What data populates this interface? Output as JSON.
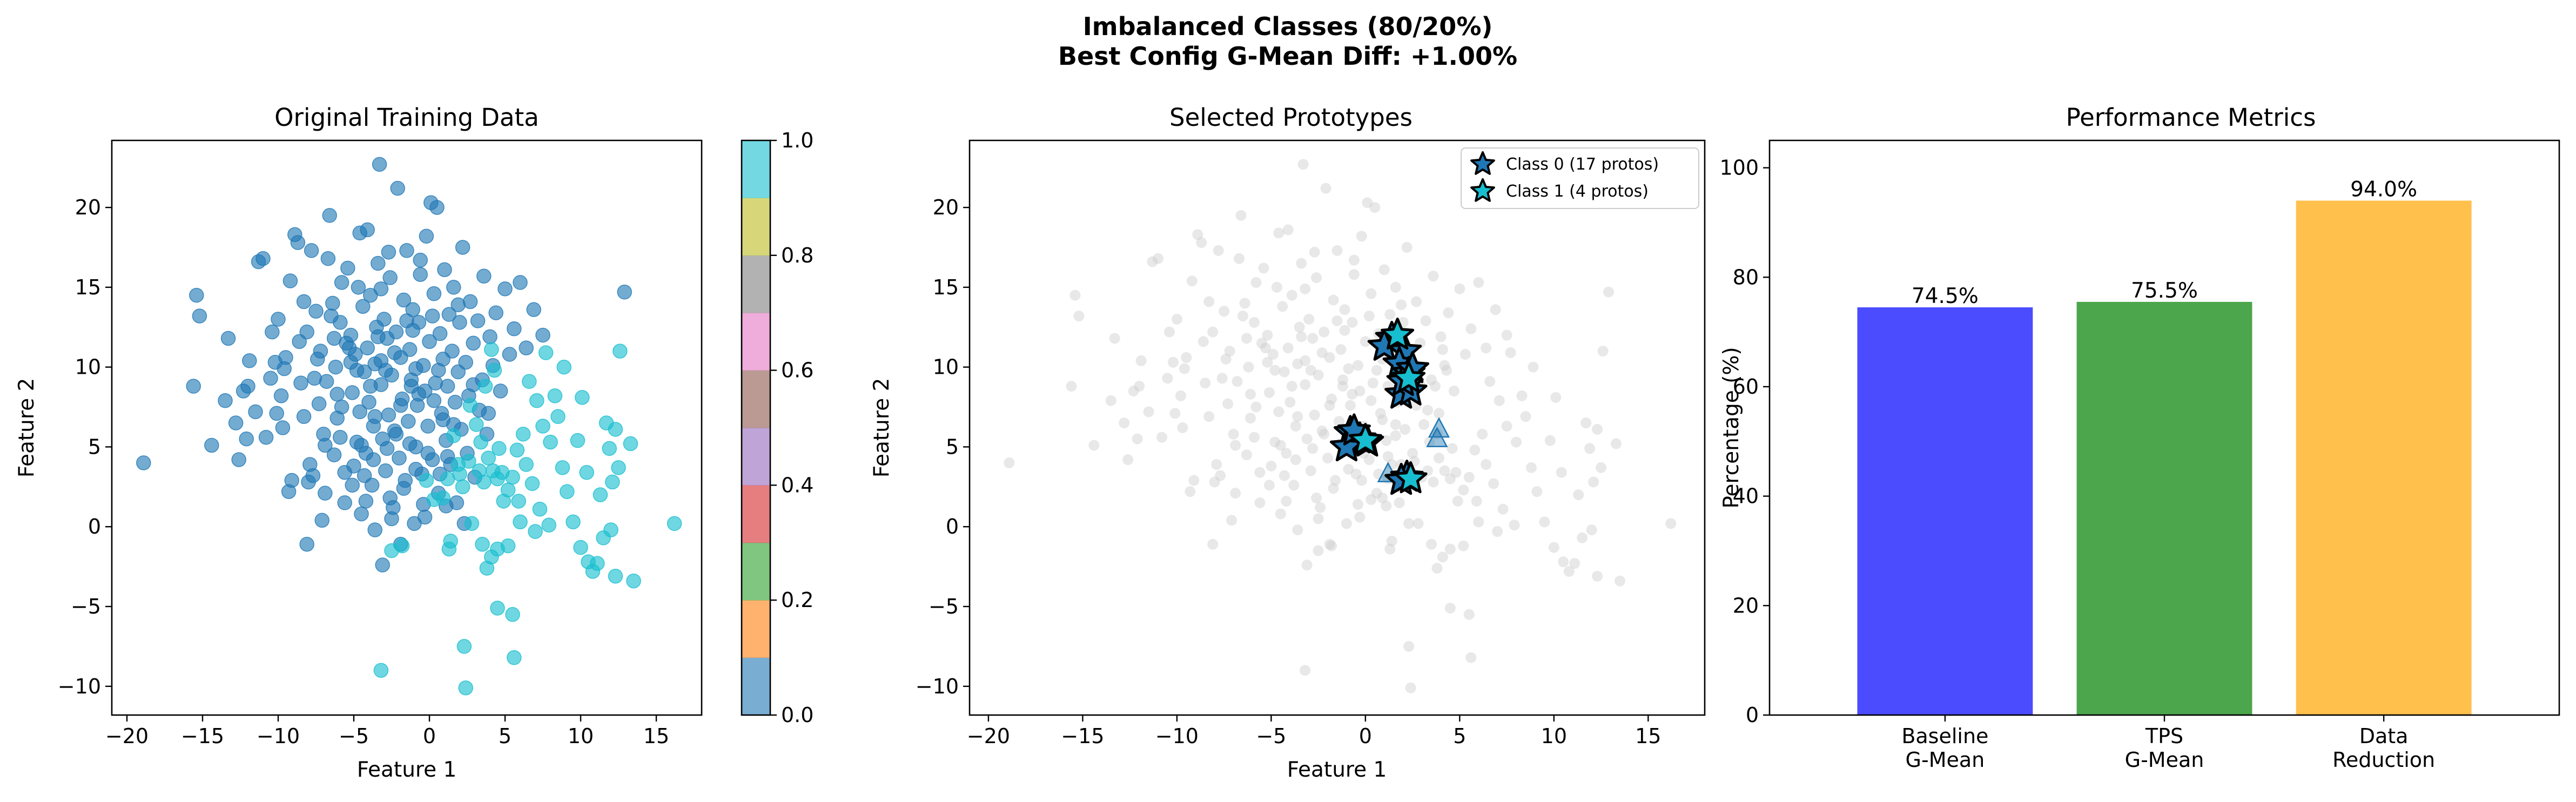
{
  "figure": {
    "title_line1": "Imbalanced Classes (80/20%)",
    "title_line2": "Best Config G-Mean Diff: +1.00%"
  },
  "colors": {
    "class0": "#1f77b4",
    "class1": "#17becf",
    "background_points": "#cccccc",
    "colormap_tab10": [
      "#1f77b4",
      "#ff7f0e",
      "#2ca02c",
      "#d62728",
      "#9467bd",
      "#8c564b",
      "#e377c2",
      "#7f7f7f",
      "#bcbd22",
      "#17becf"
    ],
    "bars": [
      "#0000ff",
      "#008000",
      "#ffa500"
    ]
  },
  "chart_data": [
    {
      "type": "scatter",
      "title": "Original Training Data",
      "xlabel": "Feature 1",
      "ylabel": "Feature 2",
      "xlim": [
        -21,
        18
      ],
      "ylim": [
        -11.8,
        24.2
      ],
      "xticks": [
        -20,
        -15,
        -10,
        -5,
        0,
        5,
        10,
        15
      ],
      "yticks": [
        -10,
        -5,
        0,
        5,
        10,
        15,
        20
      ],
      "grid": false,
      "colorbar": {
        "min": 0.0,
        "max": 1.0,
        "ticks": [
          "0.0",
          "0.2",
          "0.4",
          "0.6",
          "0.8",
          "1.0"
        ],
        "colormap": "tab10"
      },
      "class0_points": [
        [
          -18.9,
          4
        ],
        [
          -15.6,
          8.8
        ],
        [
          -15.4,
          14.5
        ],
        [
          -15.2,
          13.2
        ],
        [
          -14.4,
          5.1
        ],
        [
          -12.8,
          6.5
        ],
        [
          -12.6,
          4.2
        ],
        [
          -12.3,
          8.5
        ],
        [
          -12,
          8.8
        ],
        [
          -11.5,
          7.2
        ],
        [
          -11.3,
          16.6
        ],
        [
          -11,
          16.8
        ],
        [
          -10.8,
          5.6
        ],
        [
          -10.5,
          9.3
        ],
        [
          -10.2,
          10.3
        ],
        [
          -10,
          13
        ],
        [
          -9.7,
          6.2
        ],
        [
          -9.6,
          9.9
        ],
        [
          -9.3,
          2.2
        ],
        [
          -9.2,
          15.4
        ],
        [
          -8.9,
          18.3
        ],
        [
          -8.7,
          17.8
        ],
        [
          -8.5,
          9
        ],
        [
          -8.3,
          6.9
        ],
        [
          -8.1,
          12.2
        ],
        [
          -8,
          2.8
        ],
        [
          -7.8,
          17.3
        ],
        [
          -7.7,
          3.2
        ],
        [
          -7.5,
          13.5
        ],
        [
          -7.4,
          10.5
        ],
        [
          -7.2,
          11
        ],
        [
          -7,
          5.8
        ],
        [
          -6.9,
          2.1
        ],
        [
          -6.7,
          16.8
        ],
        [
          -6.6,
          19.5
        ],
        [
          -6.4,
          14
        ],
        [
          -6.3,
          4.5
        ],
        [
          -6.2,
          10
        ],
        [
          -6.1,
          8.3
        ],
        [
          -5.9,
          12.8
        ],
        [
          -5.8,
          7.5
        ],
        [
          -5.6,
          1.5
        ],
        [
          -5.5,
          11.5
        ],
        [
          -5.4,
          16.2
        ],
        [
          -5.2,
          12
        ],
        [
          -5.1,
          8.4
        ],
        [
          -5,
          3.8
        ],
        [
          -4.9,
          10.8
        ],
        [
          -4.8,
          5.3
        ],
        [
          -4.7,
          15
        ],
        [
          -4.6,
          18.4
        ],
        [
          -4.5,
          0.8
        ],
        [
          -4.4,
          13.8
        ],
        [
          -4.3,
          9.7
        ],
        [
          -4.2,
          4.6
        ],
        [
          -4.1,
          11.2
        ],
        [
          -4,
          7.8
        ],
        [
          -3.9,
          14.5
        ],
        [
          -3.8,
          2.6
        ],
        [
          -3.7,
          6.3
        ],
        [
          -3.6,
          10.2
        ],
        [
          -3.5,
          12.5
        ],
        [
          -3.4,
          16.5
        ],
        [
          -3.3,
          22.7
        ],
        [
          -3.2,
          8.9
        ],
        [
          -3.1,
          5.5
        ],
        [
          -3,
          13
        ],
        [
          -2.9,
          3.5
        ],
        [
          -2.8,
          11.8
        ],
        [
          -2.7,
          7
        ],
        [
          -2.6,
          15.6
        ],
        [
          -2.5,
          9.5
        ],
        [
          -2.4,
          1.2
        ],
        [
          -2.3,
          6
        ],
        [
          -2.2,
          12.2
        ],
        [
          -2.1,
          21.2
        ],
        [
          -2,
          4.3
        ],
        [
          -1.9,
          10.6
        ],
        [
          -1.8,
          8
        ],
        [
          -1.7,
          14.2
        ],
        [
          -1.6,
          2.9
        ],
        [
          -1.5,
          17.3
        ],
        [
          -1.4,
          6.6
        ],
        [
          -1.3,
          11.1
        ],
        [
          -1.2,
          9.2
        ],
        [
          -1.1,
          13.6
        ],
        [
          -1,
          0.2
        ],
        [
          -0.9,
          5
        ],
        [
          -0.8,
          7.6
        ],
        [
          -0.7,
          12.8
        ],
        [
          -0.6,
          15.8
        ],
        [
          -0.5,
          3.3
        ],
        [
          -0.4,
          10.1
        ],
        [
          -0.3,
          8.5
        ],
        [
          -0.2,
          18.2
        ],
        [
          -0.1,
          6.3
        ],
        [
          0,
          11.6
        ],
        [
          0.1,
          20.3
        ],
        [
          0.2,
          4.2
        ],
        [
          0.3,
          14.6
        ],
        [
          0.4,
          9
        ],
        [
          0.5,
          20
        ],
        [
          0.6,
          2.1
        ],
        [
          0.7,
          12.1
        ],
        [
          0.8,
          7.1
        ],
        [
          0.9,
          10.5
        ],
        [
          1,
          16.1
        ],
        [
          1.1,
          5.4
        ],
        [
          1.2,
          8.8
        ],
        [
          1.3,
          13.3
        ],
        [
          1.4,
          3.9
        ],
        [
          1.5,
          11
        ],
        [
          1.6,
          15
        ],
        [
          1.7,
          7.8
        ],
        [
          1.8,
          1.5
        ],
        [
          1.9,
          9.7
        ],
        [
          2,
          12.8
        ],
        [
          2.1,
          6.1
        ],
        [
          2.2,
          17.5
        ],
        [
          2.4,
          10.3
        ],
        [
          2.5,
          4.6
        ],
        [
          2.6,
          8.2
        ],
        [
          2.7,
          14.1
        ],
        [
          2.9,
          11.5
        ],
        [
          3,
          3.1
        ],
        [
          3.2,
          12.9
        ],
        [
          3.3,
          7.3
        ],
        [
          3.5,
          9.2
        ],
        [
          3.6,
          15.7
        ],
        [
          3.8,
          5.8
        ],
        [
          4,
          11.9
        ],
        [
          4.2,
          10.1
        ],
        [
          4.4,
          13.4
        ],
        [
          4.7,
          8.5
        ],
        [
          5,
          14.9
        ],
        [
          5.3,
          10.8
        ],
        [
          5.6,
          12.4
        ],
        [
          6,
          15.3
        ],
        [
          6.4,
          11.2
        ],
        [
          6.9,
          13.6
        ],
        [
          7.5,
          12
        ],
        [
          12.9,
          14.7
        ],
        [
          -13.5,
          7.9
        ],
        [
          -9.8,
          8.2
        ],
        [
          -6.8,
          9.1
        ],
        [
          -3.2,
          10.4
        ],
        [
          -2.9,
          9.8
        ],
        [
          -0.9,
          9.9
        ],
        [
          -4.6,
          7.2
        ],
        [
          -3.9,
          8.8
        ],
        [
          -1.9,
          7.6
        ],
        [
          -0.7,
          8.3
        ],
        [
          -5.3,
          11.2
        ],
        [
          -2.3,
          10.9
        ],
        [
          0.6,
          9.8
        ],
        [
          -8.6,
          11.6
        ],
        [
          -10.4,
          12.2
        ],
        [
          -6.5,
          13.2
        ],
        [
          -9.1,
          2.9
        ],
        [
          -7.9,
          3.9
        ],
        [
          -2.5,
          0.5
        ],
        [
          -3.6,
          -0.2
        ],
        [
          -3.1,
          -2.4
        ],
        [
          -1.9,
          -1.1
        ],
        [
          -2.6,
          1.8
        ],
        [
          -0.3,
          0.6
        ],
        [
          1.1,
          1.3
        ],
        [
          2.3,
          0.2
        ],
        [
          -5.9,
          5.6
        ],
        [
          -4.5,
          5.1
        ],
        [
          -3.7,
          4.2
        ],
        [
          -1.3,
          5.2
        ],
        [
          -0.1,
          4.6
        ],
        [
          1.2,
          4.4
        ],
        [
          -7.3,
          7.7
        ],
        [
          -6.1,
          6.8
        ],
        [
          -4.8,
          9.8
        ],
        [
          -1.1,
          12.3
        ],
        [
          0.2,
          13.2
        ],
        [
          1.9,
          13.9
        ],
        [
          -4.1,
          18.6
        ],
        [
          -2.7,
          17.2
        ],
        [
          -0.6,
          16.7
        ],
        [
          -3.2,
          14.9
        ],
        [
          -5.8,
          15.3
        ],
        [
          -8.3,
          14.1
        ],
        [
          -11.9,
          10.4
        ],
        [
          -13.3,
          11.8
        ],
        [
          -7.1,
          0.4
        ],
        [
          -5.1,
          2.6
        ],
        [
          -4.3,
          3.2
        ],
        [
          -1.7,
          2.4
        ],
        [
          0.7,
          3.3
        ],
        [
          -0.4,
          1.4
        ],
        [
          -8.1,
          -1.1
        ],
        [
          -6.9,
          5.1
        ],
        [
          -2.2,
          5.8
        ],
        [
          0.9,
          6.7
        ],
        [
          -9.5,
          10.6
        ],
        [
          -3.4,
          11.9
        ],
        [
          -1.5,
          12.9
        ],
        [
          2.9,
          8.9
        ],
        [
          3.9,
          7.1
        ],
        [
          -10.1,
          7.1
        ],
        [
          -12.1,
          5.5
        ],
        [
          -6.3,
          11.8
        ],
        [
          -7.6,
          9.3
        ],
        [
          -5.2,
          10.3
        ],
        [
          -3.6,
          6.9
        ],
        [
          -2.8,
          4.9
        ],
        [
          -0.9,
          3.6
        ],
        [
          -4.2,
          1.6
        ],
        [
          -5.6,
          3.4
        ],
        [
          -1.2,
          8.8
        ],
        [
          0.3,
          7.9
        ],
        [
          1.6,
          6.4
        ]
      ],
      "class1_points": [
        [
          -3.2,
          -9
        ],
        [
          2.3,
          -7.5
        ],
        [
          2.4,
          -10.1
        ],
        [
          4.5,
          -5.1
        ],
        [
          5.5,
          -5.5
        ],
        [
          5.6,
          -8.2
        ],
        [
          -2.5,
          -1.5
        ],
        [
          -1.8,
          -1.2
        ],
        [
          1.3,
          -1.4
        ],
        [
          1.4,
          -0.9
        ],
        [
          2.8,
          0.2
        ],
        [
          3.5,
          -1.1
        ],
        [
          3.8,
          -2.6
        ],
        [
          4.1,
          -1.9
        ],
        [
          4.5,
          -1.4
        ],
        [
          5.2,
          -1.2
        ],
        [
          6,
          0.3
        ],
        [
          7,
          -0.3
        ],
        [
          7.9,
          0.1
        ],
        [
          9.5,
          0.3
        ],
        [
          10,
          -1.3
        ],
        [
          10.5,
          -2.2
        ],
        [
          10.8,
          -2.8
        ],
        [
          11.1,
          -2.3
        ],
        [
          11.5,
          -0.7
        ],
        [
          12,
          -0.2
        ],
        [
          12.3,
          -3.1
        ],
        [
          13.5,
          -3.4
        ],
        [
          16.2,
          0.2
        ],
        [
          12.5,
          3.7
        ],
        [
          12.1,
          2.8
        ],
        [
          11.7,
          6.5
        ],
        [
          11.9,
          4.9
        ],
        [
          12.3,
          6.1
        ],
        [
          13.3,
          5.2
        ],
        [
          12.6,
          11
        ],
        [
          10.1,
          8.1
        ],
        [
          9.8,
          5.4
        ],
        [
          8.9,
          10
        ],
        [
          8.8,
          3.7
        ],
        [
          8,
          5.3
        ],
        [
          7.5,
          6.3
        ],
        [
          7.1,
          7.9
        ],
        [
          6.6,
          9.1
        ],
        [
          6.2,
          5.8
        ],
        [
          5.8,
          4.8
        ],
        [
          5.5,
          3.1
        ],
        [
          5.2,
          2.3
        ],
        [
          4.9,
          1.6
        ],
        [
          4.5,
          3
        ],
        [
          4.2,
          3.5
        ],
        [
          3.9,
          4.3
        ],
        [
          3.6,
          2.8
        ],
        [
          3.4,
          5.3
        ],
        [
          3.1,
          6.4
        ],
        [
          2.6,
          4.1
        ],
        [
          2.2,
          2.5
        ],
        [
          1.9,
          3.9
        ],
        [
          1.6,
          5.7
        ],
        [
          1.2,
          3
        ],
        [
          0.9,
          1.8
        ],
        [
          4.1,
          11.1
        ],
        [
          4.3,
          9.8
        ],
        [
          7.7,
          10.9
        ],
        [
          8.3,
          8.2
        ],
        [
          8.5,
          6.9
        ],
        [
          2.7,
          7.6
        ],
        [
          3.7,
          8.8
        ],
        [
          4.6,
          4.9
        ],
        [
          6.4,
          3.9
        ],
        [
          0.3,
          1.7
        ],
        [
          -0.2,
          2.9
        ],
        [
          2,
          3.3
        ],
        [
          5.9,
          1.6
        ],
        [
          6.8,
          2.7
        ],
        [
          7.3,
          1.1
        ],
        [
          9.1,
          2.2
        ],
        [
          10.4,
          3.4
        ],
        [
          11.3,
          2
        ],
        [
          3.3,
          3.5
        ],
        [
          4.8,
          3.4
        ]
      ]
    },
    {
      "type": "scatter",
      "title": "Selected Prototypes",
      "xlabel": "Feature 1",
      "ylabel": "Feature 2",
      "xlim": [
        -21,
        18
      ],
      "ylim": [
        -11.8,
        24.2
      ],
      "xticks": [
        -20,
        -15,
        -10,
        -5,
        0,
        5,
        10,
        15
      ],
      "yticks": [
        -10,
        -5,
        0,
        5,
        10,
        15,
        20
      ],
      "grid": false,
      "legend_position": "top-right",
      "series": [
        {
          "name": "Class 0 (17 protos)",
          "marker": "star",
          "points": [
            [
              1.4,
              11.8
            ],
            [
              1,
              11.3
            ],
            [
              2.1,
              11
            ],
            [
              1.8,
              10.2
            ],
            [
              2.3,
              9.6
            ],
            [
              2.2,
              8.9
            ],
            [
              1.9,
              8.3
            ],
            [
              2.4,
              8.5
            ],
            [
              2,
              9.1
            ],
            [
              2.5,
              9.9
            ],
            [
              -0.8,
              5.9
            ],
            [
              -0.3,
              5.5
            ],
            [
              -1,
              5
            ],
            [
              0.1,
              5.3
            ],
            [
              -0.6,
              6
            ],
            [
              2.2,
              3.1
            ],
            [
              1.9,
              2.9
            ]
          ]
        },
        {
          "name": "Class 1 (4 protos)",
          "marker": "star",
          "points": [
            [
              1.7,
              12
            ],
            [
              2.3,
              9.3
            ],
            [
              0,
              5.4
            ],
            [
              2.4,
              3
            ]
          ]
        }
      ],
      "triangles": [
        [
          3.9,
          6.1
        ],
        [
          3.8,
          5.5
        ],
        [
          1.2,
          3.3
        ],
        [
          2.2,
          3
        ]
      ]
    },
    {
      "type": "bar",
      "title": "Performance Metrics",
      "ylabel": "Percentage (%)",
      "ylim": [
        0,
        105
      ],
      "yticks": [
        0,
        20,
        40,
        60,
        80,
        100
      ],
      "categories": [
        [
          "Baseline",
          "G-Mean"
        ],
        [
          "TPS",
          "G-Mean"
        ],
        [
          "Data",
          "Reduction"
        ]
      ],
      "values": [
        74.5,
        75.5,
        94.0
      ],
      "labels": [
        "74.5%",
        "75.5%",
        "94.0%"
      ]
    }
  ]
}
